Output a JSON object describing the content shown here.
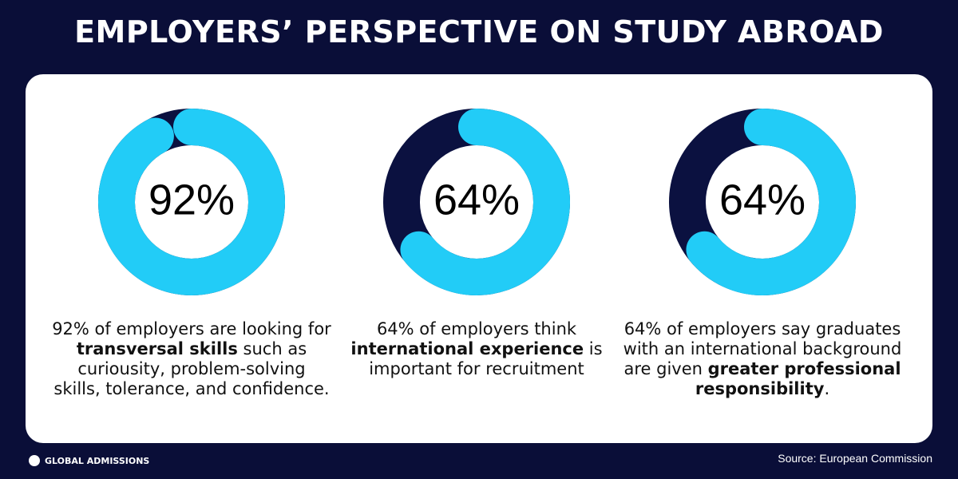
{
  "title": "EMPLOYERS’ PERSPECTIVE ON STUDY ABROAD",
  "brand": "GLOBAL ADMISSIONS",
  "source": "Source: European Commission",
  "chart_data": [
    {
      "type": "donut",
      "values": [
        92
      ],
      "value_labels": [
        "92%"
      ],
      "color": "#22ccf7",
      "track_color": "#0b1140",
      "description": [
        {
          "text": "92% of employers are looking for "
        },
        {
          "text": "transversal skills",
          "bold": true
        },
        {
          "text": " such as curiousity, problem-solving skills, tolerance, and confidence."
        }
      ]
    },
    {
      "type": "donut",
      "values": [
        64
      ],
      "value_labels": [
        "64%"
      ],
      "color": "#22ccf7",
      "track_color": "#0b1140",
      "description": [
        {
          "text": "64% of employers think "
        },
        {
          "text": "international experience",
          "bold": true
        },
        {
          "text": " is important for recruitment"
        }
      ]
    },
    {
      "type": "donut",
      "values": [
        64
      ],
      "value_labels": [
        "64%"
      ],
      "color": "#22ccf7",
      "track_color": "#0b1140",
      "description": [
        {
          "text": "64% of employers say graduates with an international background are given "
        },
        {
          "text": "greater professional responsibility",
          "bold": true
        },
        {
          "text": "."
        }
      ]
    }
  ]
}
